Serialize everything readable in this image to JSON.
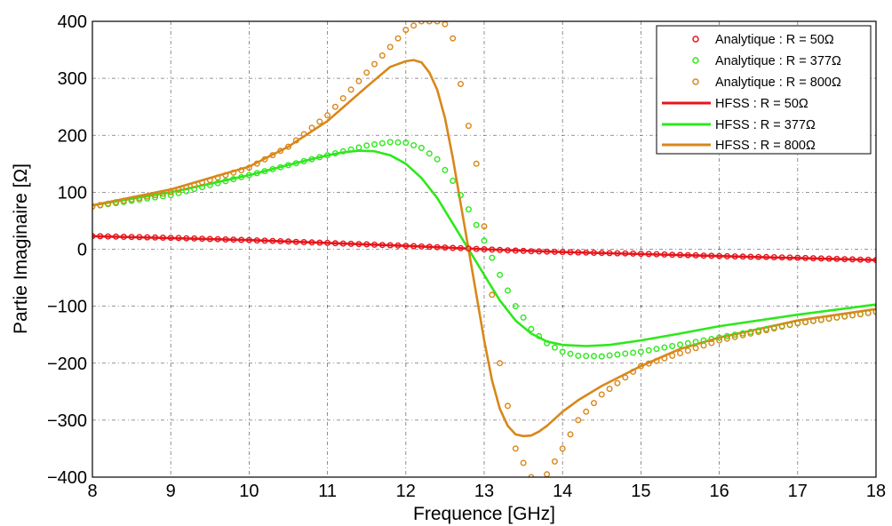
{
  "chart_data": {
    "type": "line",
    "xlabel": "Frequence [GHz]",
    "ylabel": "Partie Imaginaire [Ω]",
    "xlim": [
      8,
      18
    ],
    "ylim": [
      -400,
      400
    ],
    "xticks": [
      8,
      9,
      10,
      11,
      12,
      13,
      14,
      15,
      16,
      17,
      18
    ],
    "yticks": [
      -400,
      -300,
      -200,
      -100,
      0,
      100,
      200,
      300,
      400
    ],
    "ytick_labels": [
      "−400",
      "−300",
      "−200",
      "−100",
      "0",
      "100",
      "200",
      "300",
      "400"
    ],
    "grid": true,
    "legend_position": "top-right",
    "series": [
      {
        "name": "Analytique : R = 50Ω",
        "style": "markers",
        "color": "#e8141b",
        "x": [
          8,
          9,
          10,
          11,
          12,
          12.5,
          13,
          13.5,
          14,
          15,
          16,
          17,
          18
        ],
        "y": [
          23,
          20,
          16,
          11,
          6,
          3,
          0,
          -3,
          -5,
          -8,
          -12,
          -15,
          -19
        ]
      },
      {
        "name": "Analytique : R = 377Ω",
        "style": "markers",
        "color": "#2ee81c",
        "x": [
          8,
          9,
          10,
          11,
          11.5,
          11.8,
          12,
          12.2,
          12.4,
          12.6,
          12.8,
          13,
          13.2,
          13.4,
          13.6,
          13.8,
          14,
          14.2,
          14.5,
          15,
          16,
          17,
          18
        ],
        "y": [
          75,
          95,
          130,
          165,
          182,
          188,
          187,
          178,
          158,
          120,
          70,
          15,
          -45,
          -100,
          -140,
          -165,
          -180,
          -187,
          -188,
          -180,
          -155,
          -130,
          -110
        ]
      },
      {
        "name": "Analytique : R = 800Ω",
        "style": "markers",
        "color": "#d9871a",
        "x": [
          8,
          9,
          10,
          10.5,
          11,
          11.5,
          11.8,
          12,
          12.2,
          12.4,
          12.5,
          12.6,
          12.75,
          12.9,
          13,
          13.2,
          13.4,
          13.6,
          13.7,
          13.8,
          14,
          14.2,
          14.5,
          15,
          16,
          17,
          18
        ],
        "y": [
          75,
          100,
          143,
          180,
          235,
          310,
          355,
          385,
          400,
          400,
          395,
          370,
          250,
          150,
          40,
          -200,
          -350,
          -400,
          -405,
          -395,
          -350,
          -300,
          -255,
          -205,
          -160,
          -130,
          -110
        ]
      },
      {
        "name": "HFSS : R = 50Ω",
        "style": "line",
        "color": "#e8141b",
        "x": [
          8,
          10,
          12,
          13,
          14,
          16,
          18
        ],
        "y": [
          23,
          16,
          6,
          0,
          -5,
          -12,
          -19
        ]
      },
      {
        "name": "HFSS : R = 377Ω",
        "style": "line",
        "color": "#2ee81c",
        "x": [
          8,
          9,
          10,
          10.5,
          11,
          11.2,
          11.4,
          11.6,
          11.8,
          12,
          12.2,
          12.4,
          12.6,
          12.8,
          13,
          13.2,
          13.4,
          13.6,
          13.8,
          14,
          14.3,
          14.6,
          15,
          15.5,
          16,
          17,
          18
        ],
        "y": [
          77,
          100,
          130,
          148,
          165,
          170,
          173,
          172,
          165,
          150,
          125,
          90,
          45,
          0,
          -45,
          -90,
          -125,
          -148,
          -162,
          -168,
          -170,
          -168,
          -160,
          -148,
          -135,
          -115,
          -97
        ]
      },
      {
        "name": "HFSS : R = 800Ω",
        "style": "line",
        "color": "#d9871a",
        "x": [
          8,
          9,
          10,
          10.5,
          11,
          11.5,
          11.8,
          12,
          12.1,
          12.2,
          12.3,
          12.4,
          12.5,
          12.6,
          12.7,
          12.8,
          12.9,
          13,
          13.1,
          13.2,
          13.3,
          13.4,
          13.5,
          13.6,
          13.7,
          13.8,
          14,
          14.2,
          14.5,
          15,
          15.5,
          16,
          17,
          18
        ],
        "y": [
          77,
          105,
          145,
          180,
          225,
          285,
          320,
          330,
          332,
          328,
          310,
          280,
          230,
          160,
          80,
          0,
          -80,
          -160,
          -230,
          -280,
          -310,
          -325,
          -328,
          -327,
          -320,
          -310,
          -285,
          -265,
          -240,
          -205,
          -175,
          -155,
          -125,
          -105
        ]
      }
    ]
  }
}
